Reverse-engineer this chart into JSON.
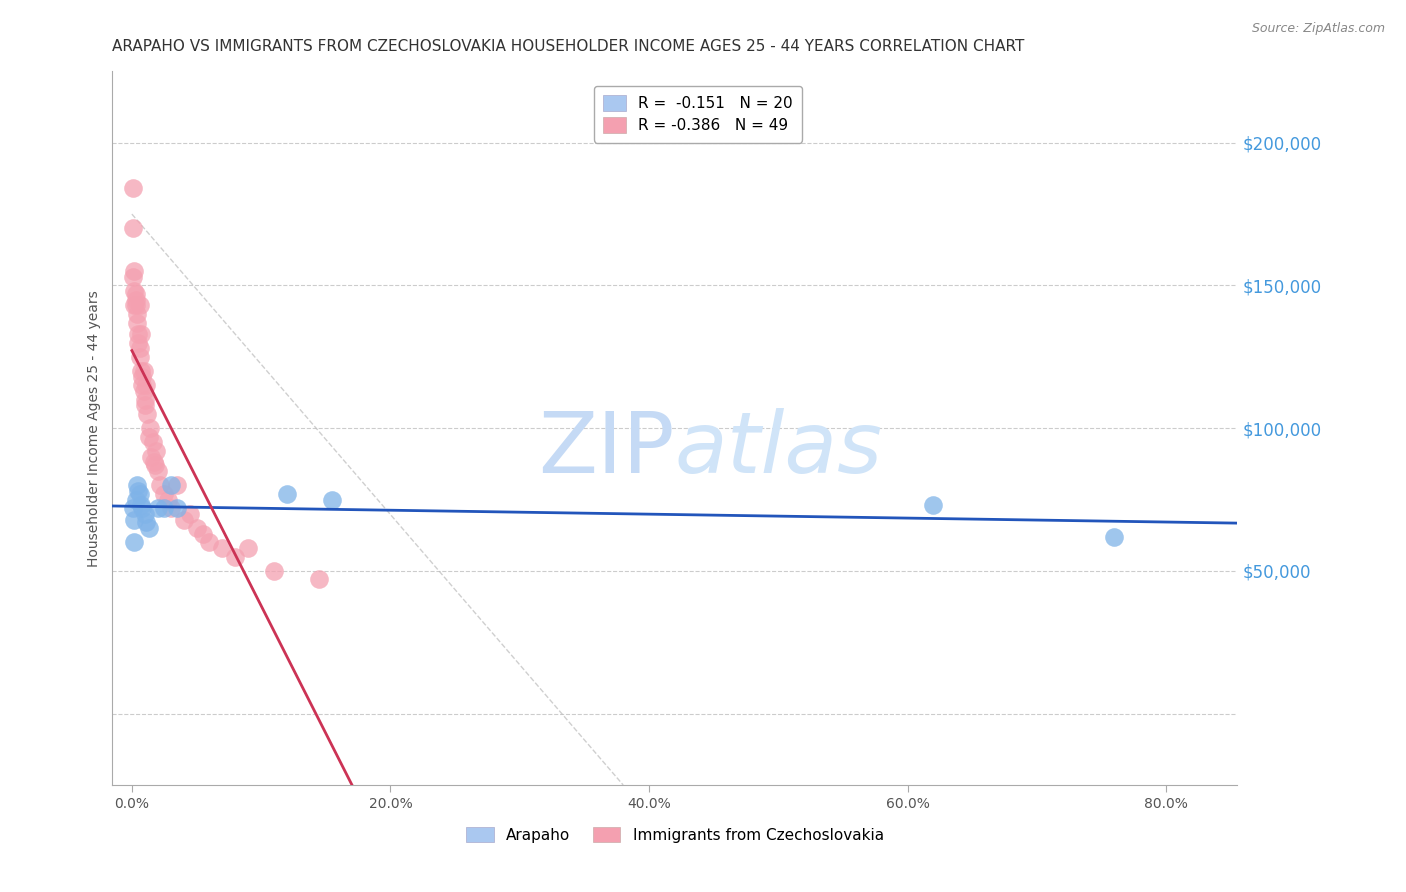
{
  "title": "ARAPAHO VS IMMIGRANTS FROM CZECHOSLOVAKIA HOUSEHOLDER INCOME AGES 25 - 44 YEARS CORRELATION CHART",
  "source": "Source: ZipAtlas.com",
  "ylabel": "Householder Income Ages 25 - 44 years",
  "xlabel_ticks": [
    "0.0%",
    "20.0%",
    "40.0%",
    "60.0%",
    "80.0%"
  ],
  "xlabel_vals": [
    0.0,
    0.2,
    0.4,
    0.6,
    0.8
  ],
  "ytick_vals": [
    0,
    50000,
    100000,
    150000,
    200000
  ],
  "ytick_labels": [
    "",
    "$50,000",
    "$100,000",
    "$150,000",
    "$200,000"
  ],
  "ylim": [
    -25000,
    225000
  ],
  "xlim": [
    -0.015,
    0.855
  ],
  "arapaho_color": "#7fb3e8",
  "czech_color": "#f4a0b0",
  "arapaho_line_color": "#2255bb",
  "czech_line_color": "#cc3355",
  "legend_arapaho_label": "R =  -0.151   N = 20",
  "legend_czech_label": "R = -0.386   N = 49",
  "legend_arapaho_color": "#aac8f0",
  "legend_czech_color": "#f4a0b0",
  "bottom_legend_arapaho": "Arapaho",
  "bottom_legend_czech": "Immigrants from Czechoslovakia",
  "watermark_zip": "ZIP",
  "watermark_atlas": "atlas",
  "watermark_color": "#c5daf5",
  "grid_color": "#cccccc",
  "ytick_color": "#4499dd",
  "arapaho_x": [
    0.001,
    0.002,
    0.002,
    0.003,
    0.004,
    0.005,
    0.006,
    0.007,
    0.008,
    0.01,
    0.011,
    0.013,
    0.02,
    0.025,
    0.03,
    0.035,
    0.12,
    0.155,
    0.62,
    0.76
  ],
  "arapaho_y": [
    72000,
    68000,
    60000,
    75000,
    80000,
    78000,
    77000,
    73000,
    72000,
    70000,
    67000,
    65000,
    72000,
    72000,
    80000,
    72000,
    77000,
    75000,
    73000,
    62000
  ],
  "czech_x": [
    0.0005,
    0.001,
    0.001,
    0.002,
    0.002,
    0.002,
    0.003,
    0.003,
    0.003,
    0.004,
    0.004,
    0.005,
    0.005,
    0.006,
    0.006,
    0.006,
    0.007,
    0.007,
    0.008,
    0.008,
    0.009,
    0.009,
    0.01,
    0.01,
    0.011,
    0.012,
    0.013,
    0.014,
    0.015,
    0.016,
    0.017,
    0.018,
    0.019,
    0.02,
    0.022,
    0.025,
    0.028,
    0.03,
    0.035,
    0.04,
    0.045,
    0.05,
    0.055,
    0.06,
    0.07,
    0.08,
    0.09,
    0.11,
    0.145
  ],
  "czech_y": [
    184000,
    170000,
    153000,
    148000,
    143000,
    155000,
    147000,
    145000,
    143000,
    140000,
    137000,
    133000,
    130000,
    128000,
    125000,
    143000,
    133000,
    120000,
    115000,
    118000,
    120000,
    113000,
    110000,
    108000,
    115000,
    105000,
    97000,
    100000,
    90000,
    95000,
    88000,
    87000,
    92000,
    85000,
    80000,
    77000,
    75000,
    72000,
    80000,
    68000,
    70000,
    65000,
    63000,
    60000,
    58000,
    55000,
    58000,
    50000,
    47000
  ],
  "title_fontsize": 11,
  "axis_label_fontsize": 10,
  "tick_fontsize": 10,
  "legend_fontsize": 11
}
